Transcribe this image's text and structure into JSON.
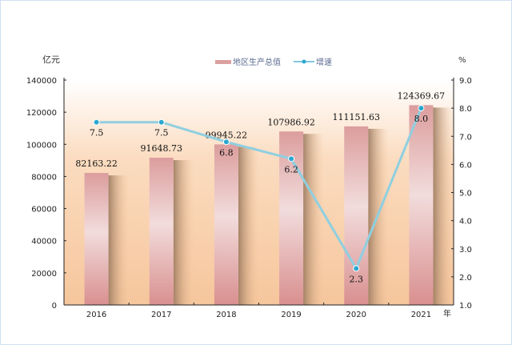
{
  "chart_data": {
    "type": "bar+line",
    "categories": [
      "2016",
      "2017",
      "2018",
      "2019",
      "2020",
      "2021"
    ],
    "series": [
      {
        "name": "地区生产总值",
        "type": "bar",
        "axis": "left",
        "values": [
          82163.22,
          91648.73,
          99945.22,
          107986.92,
          111151.63,
          124369.67
        ],
        "labels": [
          "82163.22",
          "91648.73",
          "99945.22",
          "107986.92",
          "111151.63",
          "124369.67"
        ],
        "color": "#d99a9a"
      },
      {
        "name": "增速",
        "type": "line",
        "axis": "right",
        "values": [
          7.5,
          7.5,
          6.8,
          6.2,
          2.3,
          8.0
        ],
        "labels": [
          "7.5",
          "7.5",
          "6.8",
          "6.2",
          "2.3",
          "8.0"
        ],
        "color": "#7ec8dc",
        "marker_color": "#2aa8d0"
      }
    ],
    "left_axis": {
      "label": "亿元",
      "ylim": [
        0,
        140000
      ],
      "ticks": [
        "0",
        "20000",
        "40000",
        "60000",
        "80000",
        "100000",
        "120000",
        "140000"
      ]
    },
    "right_axis": {
      "label": "%",
      "ylim": [
        1.0,
        9.0
      ],
      "ticks": [
        "1.0",
        "2.0",
        "3.0",
        "4.0",
        "5.0",
        "6.0",
        "7.0",
        "8.0",
        "9.0"
      ]
    },
    "xlabel": "年",
    "legend": "top-center",
    "grid": false
  }
}
